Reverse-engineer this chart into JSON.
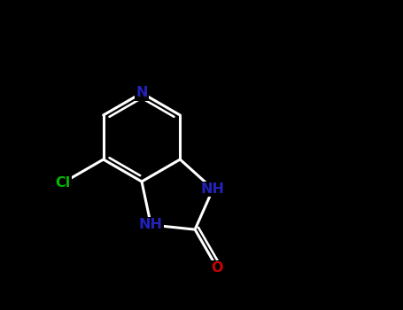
{
  "background_color": "#000000",
  "white": "#ffffff",
  "blue": "#2222bb",
  "green": "#00bb00",
  "red": "#cc0000",
  "figsize": [
    4.55,
    3.5
  ],
  "dpi": 100,
  "xlim": [
    0,
    9.1
  ],
  "ylim": [
    0,
    7.0
  ]
}
